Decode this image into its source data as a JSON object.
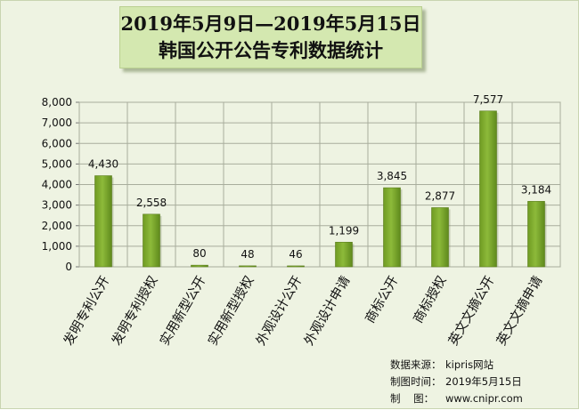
{
  "title": {
    "line1": "2019年5月9日—2019年5月15日",
    "line2": "韩国公开公告专利数据统计"
  },
  "chart_data": {
    "type": "bar",
    "categories": [
      "发明专利公开",
      "发明专利授权",
      "实用新型公开",
      "实用新型授权",
      "外观设计公开",
      "外观设计申请",
      "商标公开",
      "商标授权",
      "英文文摘公开",
      "英文文摘申请"
    ],
    "values": [
      4430,
      2558,
      80,
      48,
      46,
      1199,
      3845,
      2877,
      7577,
      3184
    ],
    "data_labels": [
      "4,430",
      "2,558",
      "80",
      "48",
      "46",
      "1,199",
      "3,845",
      "2,877",
      "7,577",
      "3,184"
    ],
    "y_ticks": [
      "0",
      "1,000",
      "2,000",
      "3,000",
      "4,000",
      "5,000",
      "6,000",
      "7,000",
      "8,000"
    ],
    "ylim": [
      0,
      8000
    ],
    "grid": true,
    "bar_color": "#8dba3a"
  },
  "source": {
    "row1_label": "数据来源：",
    "row1_value": "kipris网站",
    "row2_label": "制图时间：",
    "row2_value": "2019年5月15日",
    "row3_label": "制    图：",
    "row3_value": "www.cnipr.com"
  }
}
